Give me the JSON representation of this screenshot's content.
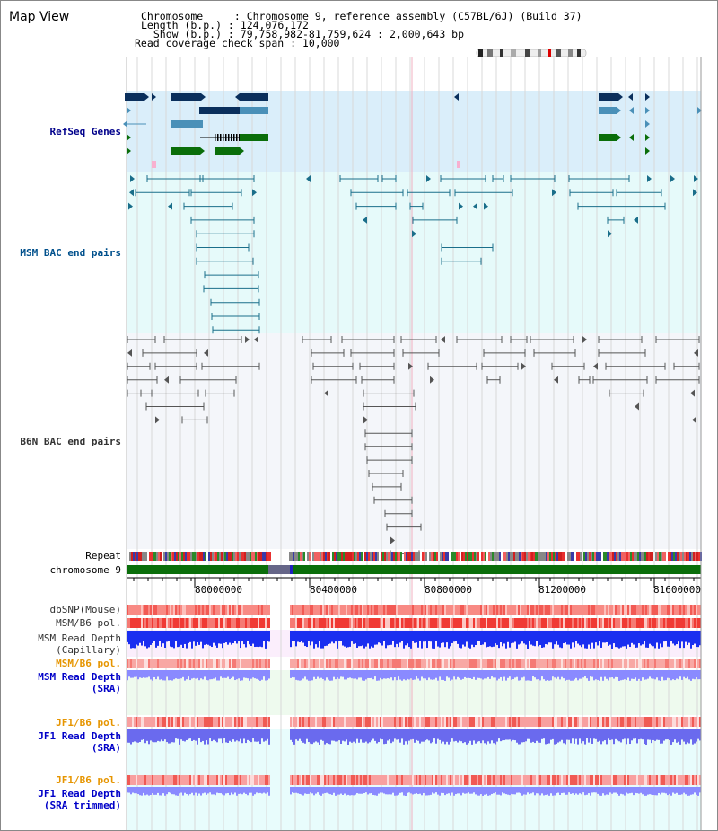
{
  "title": "Map View",
  "header": {
    "chromosome": "Chromosome     : Chromosome 9, reference assembly (C57BL/6J) (Build 37)",
    "length": "Length (b.p.) : 124,076,172",
    "show": "  Show (b.p.) : 79,758,982-81,759,624 : 2,000,643 bp",
    "read_span": "Read coverage check span : 10,000"
  },
  "tracks": {
    "refseq": "RefSeq Genes",
    "msm_bac": "MSM BAC end pairs",
    "b6n_bac": "B6N BAC end pairs",
    "repeat": "Repeat",
    "chromosome": "chromosome 9",
    "dbsnp": "dbSNP(Mouse)",
    "msm_b6_pol_1": "MSM/B6 pol.",
    "msm_depth_cap": "MSM Read Depth\n(Capillary)",
    "msm_b6_pol_2": "MSM/B6 pol.",
    "msm_depth_sra": "MSM Read Depth\n(SRA)",
    "jf1_b6_pol_1": "JF1/B6 pol.",
    "jf1_depth_sra": "JF1 Read Depth\n(SRA)",
    "jf1_b6_pol_2": "JF1/B6 pol.",
    "jf1_depth_trim": "JF1 Read Depth\n(SRA trimmed)"
  },
  "axis": {
    "ticks": [
      "80000000",
      "80400000",
      "80800000",
      "81200000",
      "81600000"
    ]
  },
  "colors": {
    "refseq_bg": "#daeefa",
    "msm_bg": "#e6fafa",
    "b6n_bg": "#f4f6fa",
    "refseq_label": "#00008b",
    "msm_label": "#00508c",
    "b6n_label": "#333333",
    "pol_label": "#e69500",
    "depth_label": "#0000c8",
    "gene_navy": "#0a2f5c",
    "gene_steel": "#4a90b8",
    "gene_green": "#0a6e0a",
    "bac_teal": "#1a6e8a",
    "bac_gray": "#555555",
    "chrom_green": "#0a6e0a",
    "snp_red": "#f0302a",
    "depth_blue": "#1a2ef0",
    "depth_light": "#8a8aff"
  }
}
